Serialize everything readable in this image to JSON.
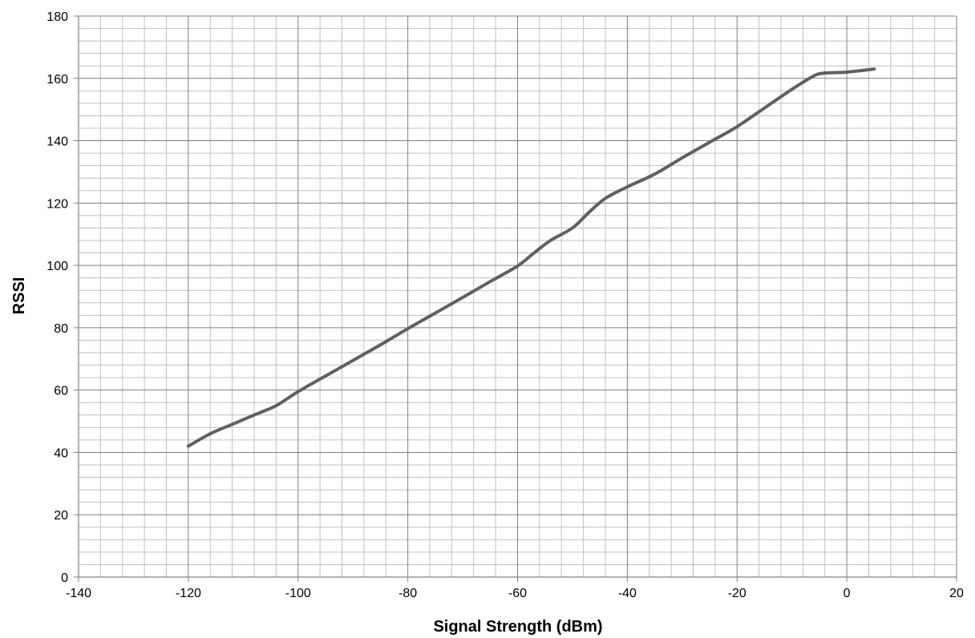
{
  "chart_data": {
    "type": "line",
    "title": "",
    "xlabel": "Signal Strength (dBm)",
    "ylabel": "RSSI",
    "xlim": [
      -140,
      20
    ],
    "ylim": [
      0,
      180
    ],
    "x_ticks": [
      -140,
      -120,
      -100,
      -80,
      -60,
      -40,
      -20,
      0,
      20
    ],
    "y_ticks": [
      0,
      20,
      40,
      60,
      80,
      100,
      120,
      140,
      160,
      180
    ],
    "x_tick_labels": [
      "-140",
      "-120",
      "-100",
      "-80",
      "-60",
      "-40",
      "-20",
      "0",
      "20"
    ],
    "y_tick_labels": [
      "0",
      "20",
      "40",
      "60",
      "80",
      "100",
      "120",
      "140",
      "160",
      "180"
    ],
    "grid": true,
    "minor_grid": true,
    "legend": "none",
    "colors": {
      "line": "#606060",
      "major_grid": "#808080",
      "minor_grid": "#c0c0c0",
      "axis": "#808080"
    },
    "series": [
      {
        "x": [
          -120,
          -116,
          -112,
          -108,
          -104,
          -100,
          -95,
          -90,
          -85,
          -80,
          -75,
          -70,
          -65,
          -60,
          -57,
          -54,
          -50,
          -47,
          -44,
          -40,
          -35,
          -30,
          -25,
          -20,
          -15,
          -10,
          -6,
          -4,
          0,
          5
        ],
        "y": [
          42,
          46,
          49,
          52,
          55,
          59.5,
          64.5,
          69.5,
          74.5,
          79.7,
          84.7,
          89.7,
          94.8,
          99.8,
          104,
          108,
          112,
          117,
          121.5,
          125.2,
          129.3,
          134.5,
          139.5,
          144.5,
          150.5,
          156.5,
          160.8,
          161.7,
          162,
          163
        ]
      }
    ]
  }
}
